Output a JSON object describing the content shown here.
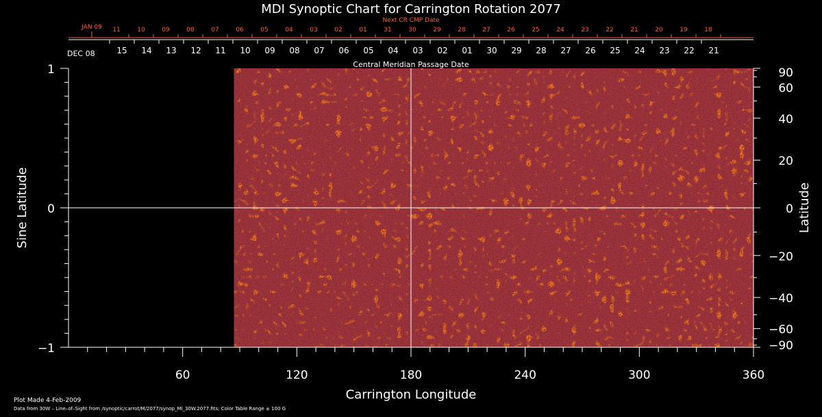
{
  "chart_data": {
    "type": "heatmap",
    "title": "MDI Synoptic Chart for Carrington Rotation 2077",
    "xlabel": "Carrington Longitude",
    "ylabel": "Sine Latitude",
    "ylabel_right": "Latitude",
    "xlim": [
      0,
      360
    ],
    "ylim": [
      -1,
      1
    ],
    "x_ticks": [
      60,
      120,
      180,
      240,
      300,
      360
    ],
    "y_ticks_left": [
      1,
      0,
      -1
    ],
    "y_ticks_left_labels": [
      "1",
      "0",
      "−1"
    ],
    "y_ticks_right": [
      90,
      60,
      40,
      20,
      0,
      -20,
      -40,
      -60,
      -90
    ],
    "y_ticks_right_labels": [
      "90",
      "60",
      "40",
      "20",
      "0",
      "−20",
      "−40",
      "−60",
      "−90"
    ],
    "data_start_longitude": 87,
    "center_line_longitude": 180,
    "next_cr_label": "Next CR CMP Date",
    "next_cr_start": "JAN 09",
    "next_cr_dates": [
      "11",
      "10",
      "09",
      "08",
      "07",
      "06",
      "05",
      "04",
      "03",
      "02",
      "01",
      "31",
      "30",
      "29",
      "28",
      "27",
      "26",
      "25",
      "24",
      "23",
      "22",
      "21",
      "20",
      "19",
      "18"
    ],
    "cmp_start": "DEC 08",
    "cmp_dates": [
      "15",
      "14",
      "13",
      "12",
      "11",
      "10",
      "09",
      "08",
      "07",
      "06",
      "05",
      "04",
      "03",
      "02",
      "01",
      "30",
      "29",
      "28",
      "27",
      "26",
      "25",
      "24",
      "23",
      "22",
      "21"
    ],
    "cmp_label": "Central Meridian Passage Date",
    "color_range_gauss": 100,
    "colors": {
      "map_base": "#e8501a",
      "map_dark": "#8a1a10",
      "map_light": "#ffb040",
      "axis": "#ffffff",
      "next_cr": "#ff5a2a"
    }
  },
  "footer": {
    "plot_made": "Plot Made   4-Feb-2009",
    "data_source": "Data from 30W – Line–of–Sight from /synoptic/carrot/M/2077/synop_Ml_30W.2077.fits; Color Table Range ± 100 G"
  }
}
